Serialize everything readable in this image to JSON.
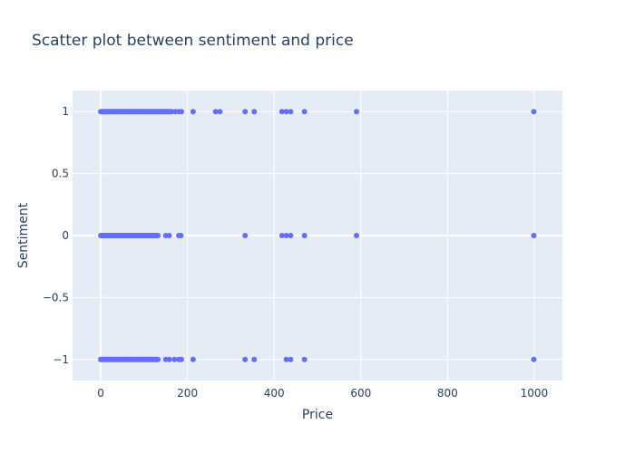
{
  "chart_data": {
    "type": "scatter",
    "title": "Scatter plot between sentiment and price",
    "xlabel": "Price",
    "ylabel": "Sentiment",
    "xlim": [
      -65,
      1065
    ],
    "ylim": [
      -1.17,
      1.17
    ],
    "x_ticks": [
      0,
      200,
      400,
      600,
      800,
      1000
    ],
    "x_tick_labels": [
      "0",
      "200",
      "400",
      "600",
      "800",
      "1000"
    ],
    "y_ticks": [
      -1,
      -0.5,
      0,
      0.5,
      1
    ],
    "y_tick_labels": [
      "−1",
      "−0.5",
      "0",
      "0.5",
      "1"
    ],
    "grid": true,
    "legend": "none",
    "colors": {
      "marker": "#636efa",
      "plot_bg": "#e5ecf6",
      "grid": "#ffffff",
      "text": "#2a3f5f"
    },
    "series": [
      {
        "points": [
          {
            "x": 0,
            "y": 1
          },
          {
            "x": 2,
            "y": 1
          },
          {
            "x": 4,
            "y": 1
          },
          {
            "x": 6,
            "y": 1
          },
          {
            "x": 8,
            "y": 1
          },
          {
            "x": 10,
            "y": 1
          },
          {
            "x": 12,
            "y": 1
          },
          {
            "x": 14,
            "y": 1
          },
          {
            "x": 16,
            "y": 1
          },
          {
            "x": 18,
            "y": 1
          },
          {
            "x": 20,
            "y": 1
          },
          {
            "x": 22,
            "y": 1
          },
          {
            "x": 24,
            "y": 1
          },
          {
            "x": 26,
            "y": 1
          },
          {
            "x": 28,
            "y": 1
          },
          {
            "x": 30,
            "y": 1
          },
          {
            "x": 32,
            "y": 1
          },
          {
            "x": 34,
            "y": 1
          },
          {
            "x": 36,
            "y": 1
          },
          {
            "x": 38,
            "y": 1
          },
          {
            "x": 40,
            "y": 1
          },
          {
            "x": 42,
            "y": 1
          },
          {
            "x": 44,
            "y": 1
          },
          {
            "x": 46,
            "y": 1
          },
          {
            "x": 48,
            "y": 1
          },
          {
            "x": 50,
            "y": 1
          },
          {
            "x": 52,
            "y": 1
          },
          {
            "x": 54,
            "y": 1
          },
          {
            "x": 56,
            "y": 1
          },
          {
            "x": 58,
            "y": 1
          },
          {
            "x": 60,
            "y": 1
          },
          {
            "x": 62,
            "y": 1
          },
          {
            "x": 64,
            "y": 1
          },
          {
            "x": 66,
            "y": 1
          },
          {
            "x": 68,
            "y": 1
          },
          {
            "x": 70,
            "y": 1
          },
          {
            "x": 72,
            "y": 1
          },
          {
            "x": 74,
            "y": 1
          },
          {
            "x": 76,
            "y": 1
          },
          {
            "x": 78,
            "y": 1
          },
          {
            "x": 80,
            "y": 1
          },
          {
            "x": 82,
            "y": 1
          },
          {
            "x": 84,
            "y": 1
          },
          {
            "x": 86,
            "y": 1
          },
          {
            "x": 88,
            "y": 1
          },
          {
            "x": 90,
            "y": 1
          },
          {
            "x": 92,
            "y": 1
          },
          {
            "x": 94,
            "y": 1
          },
          {
            "x": 96,
            "y": 1
          },
          {
            "x": 98,
            "y": 1
          },
          {
            "x": 100,
            "y": 1
          },
          {
            "x": 102,
            "y": 1
          },
          {
            "x": 104,
            "y": 1
          },
          {
            "x": 106,
            "y": 1
          },
          {
            "x": 108,
            "y": 1
          },
          {
            "x": 110,
            "y": 1
          },
          {
            "x": 112,
            "y": 1
          },
          {
            "x": 114,
            "y": 1
          },
          {
            "x": 116,
            "y": 1
          },
          {
            "x": 118,
            "y": 1
          },
          {
            "x": 120,
            "y": 1
          },
          {
            "x": 122,
            "y": 1
          },
          {
            "x": 124,
            "y": 1
          },
          {
            "x": 126,
            "y": 1
          },
          {
            "x": 128,
            "y": 1
          },
          {
            "x": 130,
            "y": 1
          },
          {
            "x": 132,
            "y": 1
          },
          {
            "x": 134,
            "y": 1
          },
          {
            "x": 136,
            "y": 1
          },
          {
            "x": 138,
            "y": 1
          },
          {
            "x": 140,
            "y": 1
          },
          {
            "x": 142,
            "y": 1
          },
          {
            "x": 144,
            "y": 1
          },
          {
            "x": 146,
            "y": 1
          },
          {
            "x": 148,
            "y": 1
          },
          {
            "x": 150,
            "y": 1
          },
          {
            "x": 152,
            "y": 1
          },
          {
            "x": 154,
            "y": 1
          },
          {
            "x": 156,
            "y": 1
          },
          {
            "x": 158,
            "y": 1
          },
          {
            "x": 160,
            "y": 1
          },
          {
            "x": 162,
            "y": 1
          },
          {
            "x": 164,
            "y": 1
          },
          {
            "x": 172,
            "y": 1
          },
          {
            "x": 180,
            "y": 1
          },
          {
            "x": 186,
            "y": 1
          },
          {
            "x": 213,
            "y": 1
          },
          {
            "x": 265,
            "y": 1
          },
          {
            "x": 275,
            "y": 1
          },
          {
            "x": 333,
            "y": 1
          },
          {
            "x": 354,
            "y": 1
          },
          {
            "x": 418,
            "y": 1
          },
          {
            "x": 428,
            "y": 1
          },
          {
            "x": 438,
            "y": 1
          },
          {
            "x": 470,
            "y": 1
          },
          {
            "x": 590,
            "y": 1
          },
          {
            "x": 999,
            "y": 1
          },
          {
            "x": 0,
            "y": 0
          },
          {
            "x": 2,
            "y": 0
          },
          {
            "x": 4,
            "y": 0
          },
          {
            "x": 6,
            "y": 0
          },
          {
            "x": 8,
            "y": 0
          },
          {
            "x": 10,
            "y": 0
          },
          {
            "x": 12,
            "y": 0
          },
          {
            "x": 14,
            "y": 0
          },
          {
            "x": 16,
            "y": 0
          },
          {
            "x": 18,
            "y": 0
          },
          {
            "x": 20,
            "y": 0
          },
          {
            "x": 22,
            "y": 0
          },
          {
            "x": 24,
            "y": 0
          },
          {
            "x": 26,
            "y": 0
          },
          {
            "x": 28,
            "y": 0
          },
          {
            "x": 30,
            "y": 0
          },
          {
            "x": 32,
            "y": 0
          },
          {
            "x": 34,
            "y": 0
          },
          {
            "x": 36,
            "y": 0
          },
          {
            "x": 38,
            "y": 0
          },
          {
            "x": 40,
            "y": 0
          },
          {
            "x": 42,
            "y": 0
          },
          {
            "x": 44,
            "y": 0
          },
          {
            "x": 46,
            "y": 0
          },
          {
            "x": 48,
            "y": 0
          },
          {
            "x": 50,
            "y": 0
          },
          {
            "x": 52,
            "y": 0
          },
          {
            "x": 54,
            "y": 0
          },
          {
            "x": 56,
            "y": 0
          },
          {
            "x": 58,
            "y": 0
          },
          {
            "x": 60,
            "y": 0
          },
          {
            "x": 62,
            "y": 0
          },
          {
            "x": 64,
            "y": 0
          },
          {
            "x": 66,
            "y": 0
          },
          {
            "x": 68,
            "y": 0
          },
          {
            "x": 70,
            "y": 0
          },
          {
            "x": 72,
            "y": 0
          },
          {
            "x": 74,
            "y": 0
          },
          {
            "x": 76,
            "y": 0
          },
          {
            "x": 78,
            "y": 0
          },
          {
            "x": 80,
            "y": 0
          },
          {
            "x": 82,
            "y": 0
          },
          {
            "x": 84,
            "y": 0
          },
          {
            "x": 86,
            "y": 0
          },
          {
            "x": 88,
            "y": 0
          },
          {
            "x": 90,
            "y": 0
          },
          {
            "x": 92,
            "y": 0
          },
          {
            "x": 94,
            "y": 0
          },
          {
            "x": 96,
            "y": 0
          },
          {
            "x": 98,
            "y": 0
          },
          {
            "x": 100,
            "y": 0
          },
          {
            "x": 102,
            "y": 0
          },
          {
            "x": 104,
            "y": 0
          },
          {
            "x": 106,
            "y": 0
          },
          {
            "x": 108,
            "y": 0
          },
          {
            "x": 110,
            "y": 0
          },
          {
            "x": 112,
            "y": 0
          },
          {
            "x": 114,
            "y": 0
          },
          {
            "x": 116,
            "y": 0
          },
          {
            "x": 118,
            "y": 0
          },
          {
            "x": 120,
            "y": 0
          },
          {
            "x": 122,
            "y": 0
          },
          {
            "x": 124,
            "y": 0
          },
          {
            "x": 126,
            "y": 0
          },
          {
            "x": 128,
            "y": 0
          },
          {
            "x": 130,
            "y": 0
          },
          {
            "x": 132,
            "y": 0
          },
          {
            "x": 150,
            "y": 0
          },
          {
            "x": 158,
            "y": 0
          },
          {
            "x": 180,
            "y": 0
          },
          {
            "x": 185,
            "y": 0
          },
          {
            "x": 333,
            "y": 0
          },
          {
            "x": 418,
            "y": 0
          },
          {
            "x": 428,
            "y": 0
          },
          {
            "x": 438,
            "y": 0
          },
          {
            "x": 470,
            "y": 0
          },
          {
            "x": 590,
            "y": 0
          },
          {
            "x": 999,
            "y": 0
          },
          {
            "x": 0,
            "y": -1
          },
          {
            "x": 2,
            "y": -1
          },
          {
            "x": 4,
            "y": -1
          },
          {
            "x": 6,
            "y": -1
          },
          {
            "x": 8,
            "y": -1
          },
          {
            "x": 10,
            "y": -1
          },
          {
            "x": 12,
            "y": -1
          },
          {
            "x": 14,
            "y": -1
          },
          {
            "x": 16,
            "y": -1
          },
          {
            "x": 18,
            "y": -1
          },
          {
            "x": 20,
            "y": -1
          },
          {
            "x": 22,
            "y": -1
          },
          {
            "x": 24,
            "y": -1
          },
          {
            "x": 26,
            "y": -1
          },
          {
            "x": 28,
            "y": -1
          },
          {
            "x": 30,
            "y": -1
          },
          {
            "x": 32,
            "y": -1
          },
          {
            "x": 34,
            "y": -1
          },
          {
            "x": 36,
            "y": -1
          },
          {
            "x": 38,
            "y": -1
          },
          {
            "x": 40,
            "y": -1
          },
          {
            "x": 42,
            "y": -1
          },
          {
            "x": 44,
            "y": -1
          },
          {
            "x": 46,
            "y": -1
          },
          {
            "x": 48,
            "y": -1
          },
          {
            "x": 50,
            "y": -1
          },
          {
            "x": 52,
            "y": -1
          },
          {
            "x": 54,
            "y": -1
          },
          {
            "x": 56,
            "y": -1
          },
          {
            "x": 58,
            "y": -1
          },
          {
            "x": 60,
            "y": -1
          },
          {
            "x": 62,
            "y": -1
          },
          {
            "x": 64,
            "y": -1
          },
          {
            "x": 66,
            "y": -1
          },
          {
            "x": 68,
            "y": -1
          },
          {
            "x": 70,
            "y": -1
          },
          {
            "x": 72,
            "y": -1
          },
          {
            "x": 74,
            "y": -1
          },
          {
            "x": 76,
            "y": -1
          },
          {
            "x": 78,
            "y": -1
          },
          {
            "x": 80,
            "y": -1
          },
          {
            "x": 82,
            "y": -1
          },
          {
            "x": 84,
            "y": -1
          },
          {
            "x": 86,
            "y": -1
          },
          {
            "x": 88,
            "y": -1
          },
          {
            "x": 90,
            "y": -1
          },
          {
            "x": 92,
            "y": -1
          },
          {
            "x": 94,
            "y": -1
          },
          {
            "x": 96,
            "y": -1
          },
          {
            "x": 98,
            "y": -1
          },
          {
            "x": 100,
            "y": -1
          },
          {
            "x": 102,
            "y": -1
          },
          {
            "x": 104,
            "y": -1
          },
          {
            "x": 106,
            "y": -1
          },
          {
            "x": 108,
            "y": -1
          },
          {
            "x": 110,
            "y": -1
          },
          {
            "x": 112,
            "y": -1
          },
          {
            "x": 114,
            "y": -1
          },
          {
            "x": 116,
            "y": -1
          },
          {
            "x": 118,
            "y": -1
          },
          {
            "x": 120,
            "y": -1
          },
          {
            "x": 122,
            "y": -1
          },
          {
            "x": 124,
            "y": -1
          },
          {
            "x": 126,
            "y": -1
          },
          {
            "x": 128,
            "y": -1
          },
          {
            "x": 130,
            "y": -1
          },
          {
            "x": 132,
            "y": -1
          },
          {
            "x": 150,
            "y": -1
          },
          {
            "x": 158,
            "y": -1
          },
          {
            "x": 170,
            "y": -1
          },
          {
            "x": 180,
            "y": -1
          },
          {
            "x": 186,
            "y": -1
          },
          {
            "x": 213,
            "y": -1
          },
          {
            "x": 333,
            "y": -1
          },
          {
            "x": 354,
            "y": -1
          },
          {
            "x": 428,
            "y": -1
          },
          {
            "x": 438,
            "y": -1
          },
          {
            "x": 470,
            "y": -1
          },
          {
            "x": 999,
            "y": -1
          }
        ]
      }
    ]
  }
}
